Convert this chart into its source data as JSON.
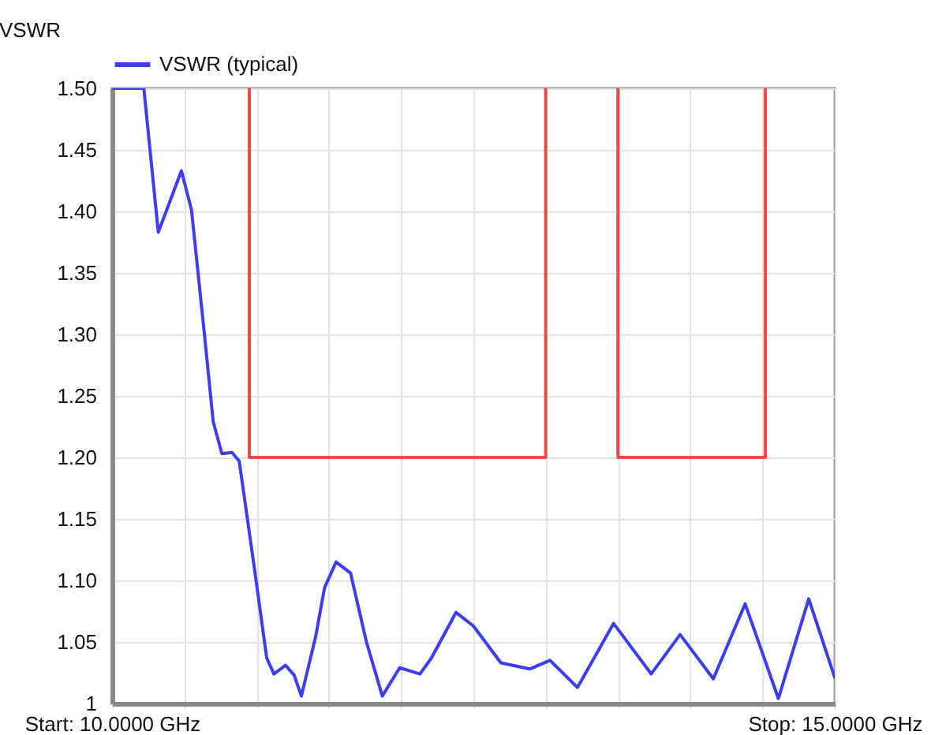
{
  "chart_data": {
    "type": "line",
    "ylabel": "VSWR",
    "xlim": [
      10,
      15
    ],
    "xticks": [
      {
        "value": 10,
        "label": "Start: 10.0000 GHz"
      },
      {
        "value": 10.5,
        "label": null
      },
      {
        "value": 11,
        "label": null
      },
      {
        "value": 11.5,
        "label": null
      },
      {
        "value": 12,
        "label": null
      },
      {
        "value": 12.5,
        "label": null
      },
      {
        "value": 13,
        "label": null
      },
      {
        "value": 13.5,
        "label": null
      },
      {
        "value": 14,
        "label": null
      },
      {
        "value": 14.5,
        "label": null
      },
      {
        "value": 15,
        "label": "Stop: 15.0000 GHz"
      }
    ],
    "ylim": [
      1,
      1.5
    ],
    "yticks": [
      1,
      {
        "value": 1.05,
        "label": "1.05"
      },
      {
        "value": 1.1,
        "label": "1.10"
      },
      {
        "value": 1.15,
        "label": "1.15"
      },
      {
        "value": 1.2,
        "label": "1.20"
      },
      {
        "value": 1.25,
        "label": "1.25"
      },
      {
        "value": 1.3,
        "label": "1.30"
      },
      {
        "value": 1.35,
        "label": "1.35"
      },
      {
        "value": 1.4,
        "label": "1.40"
      },
      {
        "value": 1.45,
        "label": "1.45"
      },
      {
        "value": 1.5,
        "label": "1.50"
      }
    ],
    "grid": true,
    "legend": "top left",
    "series": [
      {
        "name": "VSWR (typical)",
        "color": "#3c3cf0",
        "x": [
          10,
          10.22,
          10.32,
          10.48,
          10.55,
          10.64,
          10.67,
          10.7,
          10.76,
          10.83,
          10.88,
          10.98,
          11.07,
          11.12,
          11.2,
          11.26,
          11.31,
          11.41,
          11.47,
          11.55,
          11.65,
          11.76,
          11.87,
          11.99,
          12.13,
          12.21,
          12.38,
          12.5,
          12.69,
          12.89,
          13.03,
          13.22,
          13.47,
          13.73,
          13.93,
          14.16,
          14.38,
          14.61,
          14.82,
          15
        ],
        "values": [
          1.5,
          1.5,
          1.383,
          1.433,
          1.401,
          1.299,
          1.264,
          1.229,
          1.203,
          1.204,
          1.197,
          1.114,
          1.037,
          1.024,
          1.031,
          1.023,
          1.006,
          1.055,
          1.094,
          1.115,
          1.106,
          1.05,
          1.006,
          1.029,
          1.024,
          1.037,
          1.074,
          1.063,
          1.033,
          1.028,
          1.035,
          1.013,
          1.065,
          1.024,
          1.056,
          1.02,
          1.081,
          1.004,
          1.085,
          1.021
        ]
      },
      {
        "color": "#f04848",
        "x": [
          10.95,
          10.95,
          13,
          13
        ],
        "values": [
          1.5,
          1.2,
          1.2,
          1.5
        ]
      },
      {
        "color": "#f04848",
        "x": [
          13.5,
          13.5,
          14.52,
          14.52
        ],
        "values": [
          1.5,
          1.2,
          1.2,
          1.5
        ]
      }
    ]
  }
}
